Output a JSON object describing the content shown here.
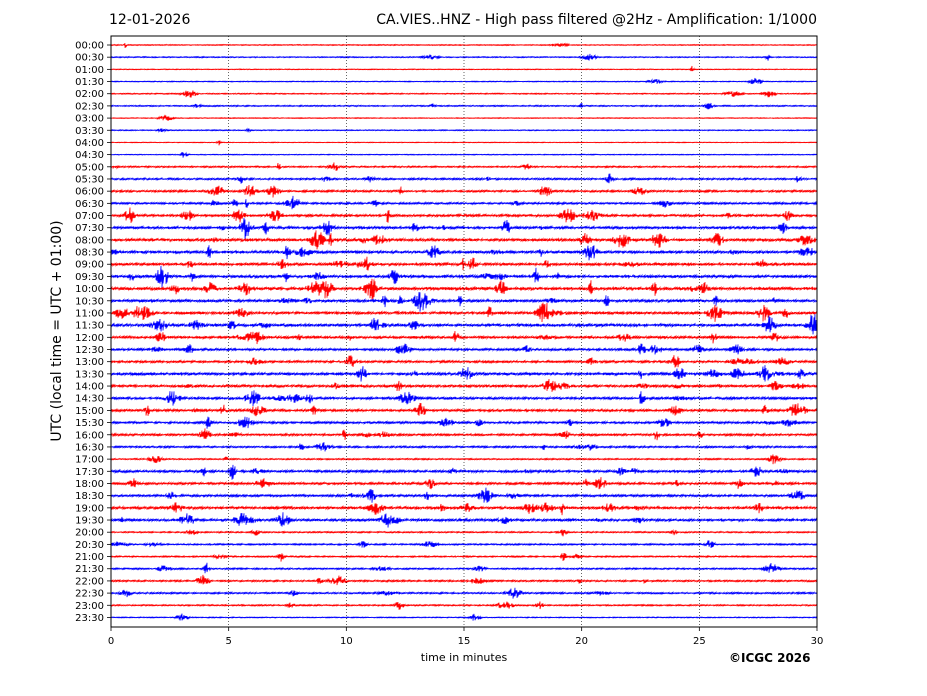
{
  "header": {
    "date": "12-01-2026",
    "title": "CA.VIES..HNZ - High pass filtered @2Hz - Amplification: 1/1000"
  },
  "footer": {
    "copyright": "©ICGC 2026"
  },
  "chart_data": {
    "type": "line",
    "title": "CA.VIES..HNZ - High pass filtered @2Hz - Amplification: 1/1000",
    "xlabel": "time in minutes",
    "ylabel": "UTC (local time = UTC + 01:00)",
    "xlim": [
      0,
      30
    ],
    "x_ticks": [
      "0",
      "5",
      "10",
      "15",
      "20",
      "25",
      "30"
    ],
    "x_tick_values": [
      0,
      5,
      10,
      15,
      20,
      25,
      30
    ],
    "grid": "vertical dotted at every 5 minutes",
    "row_labels": [
      "00:00",
      "00:30",
      "01:00",
      "01:30",
      "02:00",
      "02:30",
      "03:00",
      "03:30",
      "04:00",
      "04:30",
      "05:00",
      "05:30",
      "06:00",
      "06:30",
      "07:00",
      "07:30",
      "08:00",
      "08:30",
      "09:00",
      "09:30",
      "10:00",
      "10:30",
      "11:00",
      "11:30",
      "12:00",
      "12:30",
      "13:00",
      "13:30",
      "14:00",
      "14:30",
      "15:00",
      "15:30",
      "16:00",
      "16:30",
      "17:00",
      "17:30",
      "18:00",
      "18:30",
      "19:00",
      "19:30",
      "20:00",
      "20:30",
      "21:00",
      "21:30",
      "22:00",
      "22:30",
      "23:00",
      "23:30"
    ],
    "series_colors": [
      "#ff0000",
      "#0000ff"
    ],
    "row_activity": [
      0.15,
      0.2,
      0.08,
      0.12,
      0.2,
      0.25,
      0.1,
      0.15,
      0.05,
      0.1,
      0.35,
      0.45,
      0.5,
      0.5,
      0.65,
      0.7,
      0.8,
      0.8,
      0.75,
      0.8,
      0.85,
      0.75,
      0.75,
      0.85,
      0.7,
      0.6,
      0.6,
      0.75,
      0.7,
      0.65,
      0.65,
      0.55,
      0.55,
      0.45,
      0.3,
      0.65,
      0.6,
      0.6,
      0.75,
      0.7,
      0.3,
      0.35,
      0.3,
      0.35,
      0.4,
      0.4,
      0.3,
      0.15
    ],
    "note": "seismic helicorder traces; rows alternate red and blue; row_activity is relative noise amplitude read from the traces"
  }
}
